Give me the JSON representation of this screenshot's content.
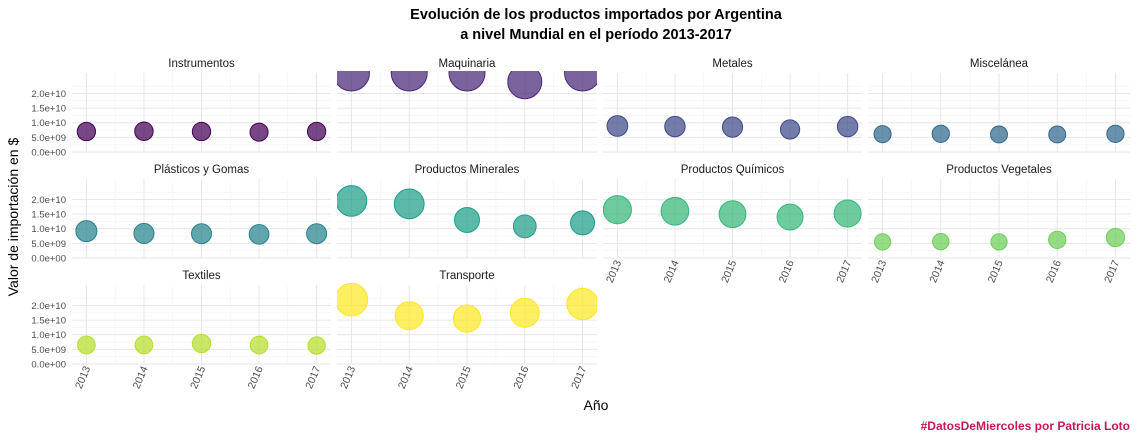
{
  "chart_data": {
    "type": "scatter",
    "title": "Evolución de los productos importados por Argentina",
    "subtitle": "a nivel Mundial en el período 2013-2017",
    "xlabel": "Año",
    "ylabel": "Valor de importación en $",
    "caption": "#DatosDeMiercoles por Patricia Loto",
    "caption_color": "#c2185b",
    "x_ticks": [
      "2013",
      "2014",
      "2015",
      "2016",
      "2017"
    ],
    "y_ticks": [
      0,
      5000000000,
      10000000000,
      15000000000,
      20000000000
    ],
    "y_tick_labels": [
      "0.0e+00",
      "5.0e+09",
      "1.0e+10",
      "1.5e+10",
      "2.0e+10"
    ],
    "ylim": [
      0,
      27000000000
    ],
    "grid": true,
    "legend": "none",
    "size_encodes": "y value",
    "facets": [
      {
        "name": "Instrumentos",
        "color": "#440154",
        "values": [
          7000000000,
          7100000000,
          7000000000,
          6800000000,
          7000000000
        ]
      },
      {
        "name": "Maquinaria",
        "color": "#482878",
        "values": [
          27000000000,
          27000000000,
          27000000000,
          24000000000,
          27000000000
        ]
      },
      {
        "name": "Metales",
        "color": "#3e4a89",
        "values": [
          8900000000,
          8700000000,
          8500000000,
          7700000000,
          8700000000
        ]
      },
      {
        "name": "Miscelánea",
        "color": "#31688e",
        "values": [
          6100000000,
          6200000000,
          6000000000,
          6000000000,
          6200000000
        ]
      },
      {
        "name": "Plásticos y Gomas",
        "color": "#26828e",
        "values": [
          9200000000,
          8400000000,
          8300000000,
          8100000000,
          8300000000
        ]
      },
      {
        "name": "Productos Minerales",
        "color": "#1f9e89",
        "values": [
          19500000000,
          18500000000,
          13000000000,
          10800000000,
          12000000000
        ]
      },
      {
        "name": "Productos Químicos",
        "color": "#35b779",
        "values": [
          16500000000,
          16000000000,
          15000000000,
          14000000000,
          15200000000
        ]
      },
      {
        "name": "Productos Vegetales",
        "color": "#6ece58",
        "values": [
          5500000000,
          5600000000,
          5500000000,
          6200000000,
          7000000000
        ]
      },
      {
        "name": "Textiles",
        "color": "#b5de2b",
        "values": [
          6500000000,
          6500000000,
          7000000000,
          6500000000,
          6300000000
        ]
      },
      {
        "name": "Transporte",
        "color": "#fde725",
        "values": [
          22000000000,
          16500000000,
          15500000000,
          17500000000,
          20500000000
        ]
      }
    ]
  }
}
